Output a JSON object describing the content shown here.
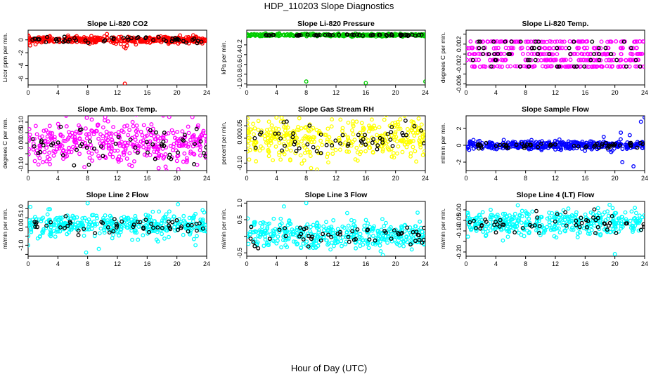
{
  "title": "HDP_110203  Slope Diagnostics",
  "xlabel": "Hour of Day (UTC)",
  "colors": {
    "highlight": "#000000",
    "red": "#ff0000",
    "green": "#00cc00",
    "magenta": "#ff00ff",
    "yellow": "#ffff00",
    "blue": "#0000ff",
    "cyan": "#00ffff"
  },
  "chart_data": [
    {
      "type": "scatter",
      "title": "Slope Li-820 CO2",
      "ylabel": "Licor ppm per min.",
      "color": "#ff0000",
      "xlim": [
        0,
        24
      ],
      "ylim": [
        -7,
        1.5
      ],
      "xticks": [
        0,
        4,
        8,
        12,
        16,
        20,
        24
      ],
      "yticks": [
        -6,
        -4,
        -2,
        0
      ],
      "ytick_labels": [
        "-6",
        "-4",
        "-2",
        "0"
      ],
      "series": [
        {
          "name": "cloud",
          "center": 0.0,
          "spread": 0.25
        },
        {
          "name": "outliers",
          "points": [
            [
              10.6,
              0.9
            ],
            [
              12.9,
              -1.1
            ],
            [
              13.1,
              -1.3
            ],
            [
              13.3,
              -0.9
            ],
            [
              1.0,
              -0.7
            ],
            [
              8.5,
              0.6
            ],
            [
              13.0,
              -6.8
            ]
          ]
        }
      ]
    },
    {
      "type": "scatter",
      "title": "Slope Li-820 Pressure",
      "ylabel": "kPa per min.",
      "color": "#00cc00",
      "xlim": [
        0,
        24
      ],
      "ylim": [
        -1.02,
        0.1
      ],
      "xticks": [
        0,
        4,
        8,
        12,
        16,
        20,
        24
      ],
      "yticks": [
        -1.0,
        -0.8,
        -0.6,
        -0.4,
        -0.2
      ],
      "ytick_labels": [
        "-1.0",
        "-0.8",
        "-0.6",
        "-0.4",
        "-0.2"
      ],
      "series": [
        {
          "name": "cloud",
          "center": 0.0,
          "spread": 0.012
        },
        {
          "name": "outliers",
          "points": [
            [
              8.0,
              -0.95
            ],
            [
              16.0,
              -0.98
            ],
            [
              24.0,
              -0.95
            ]
          ]
        }
      ]
    },
    {
      "type": "scatter",
      "title": "Slope Li-820 Temp.",
      "ylabel": "degrees C per min.",
      "color": "#ff00ff",
      "xlim": [
        0,
        24
      ],
      "ylim": [
        -0.0062,
        0.0048
      ],
      "xticks": [
        0,
        4,
        8,
        12,
        16,
        20,
        24
      ],
      "yticks": [
        -0.006,
        -0.004,
        -0.002,
        0.0,
        0.002,
        0.004
      ],
      "ytick_labels": [
        "-0.006",
        "",
        "-0.002",
        "",
        "0.002",
        ""
      ],
      "series": [
        {
          "name": "cloud",
          "center": 0.0,
          "levels": [
            -0.0025,
            -0.0012,
            0.0,
            0.0012,
            0.0025
          ]
        }
      ]
    },
    {
      "type": "scatter",
      "title": "Slope Amb. Box Temp.",
      "ylabel": "degrees C per min.",
      "color": "#ff00ff",
      "xlim": [
        0,
        24
      ],
      "ylim": [
        -0.13,
        0.13
      ],
      "xticks": [
        0,
        4,
        8,
        12,
        16,
        20,
        24
      ],
      "yticks": [
        -0.1,
        -0.05,
        0.0,
        0.05,
        0.1
      ],
      "ytick_labels": [
        "-0.10",
        "",
        "0.00",
        "0.05",
        "0.10"
      ],
      "series": [
        {
          "name": "cloud",
          "center": 0.0,
          "spread": 0.05
        }
      ]
    },
    {
      "type": "scatter",
      "title": "Slope Gas Stream RH",
      "ylabel": "percent per min.",
      "color": "#ffff00",
      "xlim": [
        0,
        24
      ],
      "ylim": [
        -0.13,
        0.09
      ],
      "xticks": [
        0,
        4,
        8,
        12,
        16,
        20,
        24
      ],
      "yticks": [
        -0.1,
        -0.05,
        0.0,
        0.05
      ],
      "ytick_labels": [
        "-0.10",
        "",
        "0.00",
        "0.05"
      ],
      "series": [
        {
          "name": "cloud",
          "center": 0.0,
          "spread": 0.04
        }
      ]
    },
    {
      "type": "scatter",
      "title": "Slope Sample Flow",
      "ylabel": "ml/min per min.",
      "color": "#0000ff",
      "xlim": [
        0,
        24
      ],
      "ylim": [
        -3,
        3.5
      ],
      "xticks": [
        0,
        4,
        8,
        12,
        16,
        20,
        24
      ],
      "yticks": [
        -2,
        0,
        2
      ],
      "ytick_labels": [
        "-2",
        "0",
        "2"
      ],
      "series": [
        {
          "name": "cloud",
          "center": 0.0,
          "spread": 0.25
        },
        {
          "name": "outliers",
          "points": [
            [
              21.0,
              -2.0
            ],
            [
              22.5,
              -2.5
            ],
            [
              23.5,
              2.8
            ],
            [
              24.0,
              3.3
            ],
            [
              22.0,
              1.2
            ],
            [
              20.8,
              1.5
            ],
            [
              18.5,
              1.0
            ],
            [
              19.5,
              -0.8
            ]
          ]
        }
      ]
    },
    {
      "type": "scatter",
      "title": "Slope Line 2 Flow",
      "ylabel": "ml/min per min.",
      "color": "#00ffff",
      "xlim": [
        0,
        24
      ],
      "ylim": [
        -1.6,
        1.4
      ],
      "xticks": [
        0,
        4,
        8,
        12,
        16,
        20,
        24
      ],
      "yticks": [
        -1.5,
        -1.0,
        -0.5,
        0.0,
        0.5,
        1.0
      ],
      "ytick_labels": [
        "",
        "-1.0",
        "",
        "0.0",
        "0.5",
        "1.0"
      ],
      "series": [
        {
          "name": "cloud",
          "center": 0.1,
          "spread": 0.3
        },
        {
          "name": "outliers",
          "points": [
            [
              8.0,
              1.3
            ],
            [
              9.5,
              -1.2
            ],
            [
              0.3,
              1.1
            ],
            [
              0.0,
              -1.0
            ],
            [
              7.8,
              -1.4
            ],
            [
              22.5,
              -1.0
            ]
          ]
        }
      ]
    },
    {
      "type": "scatter",
      "title": "Slope Line 3 Flow",
      "ylabel": "ml/min per min.",
      "color": "#00ffff",
      "xlim": [
        0,
        24
      ],
      "ylim": [
        -0.6,
        1.05
      ],
      "xticks": [
        0,
        4,
        8,
        12,
        16,
        20,
        24
      ],
      "yticks": [
        -0.5,
        0.0,
        0.5,
        1.0
      ],
      "ytick_labels": [
        "-0.5",
        "",
        "0.5",
        "1.0"
      ],
      "series": [
        {
          "name": "cloud",
          "center": 0.05,
          "spread": 0.2
        },
        {
          "name": "outliers",
          "points": [
            [
              8.0,
              1.0
            ],
            [
              5.0,
              0.9
            ],
            [
              13.5,
              0.7
            ],
            [
              18.0,
              -0.45
            ]
          ]
        }
      ]
    },
    {
      "type": "scatter",
      "title": "Slope Line 4 (LT) Flow",
      "ylabel": "ml/min per min.",
      "color": "#00ffff",
      "xlim": [
        0,
        24
      ],
      "ylim": [
        -0.22,
        0.04
      ],
      "xticks": [
        0,
        4,
        8,
        12,
        16,
        20,
        24
      ],
      "yticks": [
        -0.2,
        -0.15,
        -0.1,
        -0.05,
        0.0
      ],
      "ytick_labels": [
        "-0.20",
        "",
        "-0.10",
        "-0.05",
        "0.00"
      ],
      "series": [
        {
          "name": "cloud",
          "center": -0.06,
          "spread": 0.03
        },
        {
          "name": "outliers",
          "points": [
            [
              20.0,
              -0.21
            ],
            [
              10.0,
              -0.12
            ],
            [
              15.0,
              -0.13
            ]
          ]
        }
      ]
    }
  ]
}
